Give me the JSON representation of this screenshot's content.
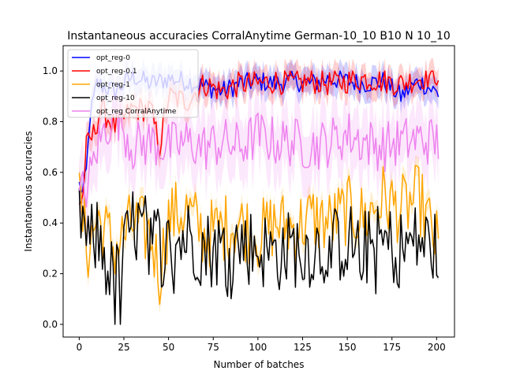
{
  "chart_data": {
    "type": "line",
    "title": "Instantaneous accuracies CorralAnytime German-10_10 B10 N 10_10",
    "xlabel": "Number of batches",
    "ylabel": "Instantaneous accuracies",
    "xlim": [
      -9,
      210
    ],
    "ylim": [
      -0.05,
      1.1
    ],
    "xticks": [
      0,
      25,
      50,
      75,
      100,
      125,
      150,
      175,
      200
    ],
    "yticks": [
      0.0,
      0.2,
      0.4,
      0.6,
      0.8,
      1.0
    ],
    "xtick_labels": [
      "0",
      "25",
      "50",
      "75",
      "100",
      "125",
      "150",
      "175",
      "200"
    ],
    "ytick_labels": [
      "0.0",
      "0.2",
      "0.4",
      "0.6",
      "0.8",
      "1.0"
    ],
    "grid": false,
    "legend_position": "top-left",
    "series": [
      {
        "name": "opt_reg-0",
        "color": "#0000ff",
        "band": 0.05,
        "anchors": [
          [
            0,
            0.55
          ],
          [
            2,
            0.52
          ],
          [
            4,
            0.6
          ],
          [
            6,
            0.82
          ],
          [
            10,
            0.95
          ],
          [
            20,
            0.92
          ],
          [
            30,
            0.98
          ],
          [
            40,
            0.95
          ],
          [
            50,
            0.97
          ],
          [
            60,
            0.96
          ],
          [
            70,
            0.94
          ],
          [
            80,
            0.92
          ],
          [
            90,
            0.95
          ],
          [
            100,
            0.96
          ],
          [
            110,
            0.95
          ],
          [
            120,
            0.96
          ],
          [
            130,
            0.95
          ],
          [
            140,
            0.97
          ],
          [
            150,
            0.96
          ],
          [
            160,
            0.95
          ],
          [
            170,
            0.96
          ],
          [
            180,
            0.9
          ],
          [
            190,
            0.96
          ],
          [
            201,
            0.91
          ]
        ],
        "noise": 0.04
      },
      {
        "name": "opt_reg-0.1",
        "color": "#ff0000",
        "band": 0.05,
        "anchors": [
          [
            0,
            0.48
          ],
          [
            2,
            0.5
          ],
          [
            4,
            0.7
          ],
          [
            8,
            0.75
          ],
          [
            12,
            0.85
          ],
          [
            20,
            0.78
          ],
          [
            30,
            0.85
          ],
          [
            40,
            0.85
          ],
          [
            45,
            0.7
          ],
          [
            50,
            0.9
          ],
          [
            60,
            0.88
          ],
          [
            70,
            0.95
          ],
          [
            80,
            0.92
          ],
          [
            90,
            0.95
          ],
          [
            100,
            0.95
          ],
          [
            110,
            0.96
          ],
          [
            120,
            0.95
          ],
          [
            130,
            0.96
          ],
          [
            140,
            0.95
          ],
          [
            150,
            0.96
          ],
          [
            160,
            0.97
          ],
          [
            170,
            0.96
          ],
          [
            180,
            0.95
          ],
          [
            190,
            0.97
          ],
          [
            201,
            0.99
          ]
        ],
        "noise": 0.05
      },
      {
        "name": "opt_reg-1",
        "color": "#ffa500",
        "band": 0.04,
        "anchors": [
          [
            0,
            0.48
          ],
          [
            5,
            0.3
          ],
          [
            10,
            0.42
          ],
          [
            20,
            0.3
          ],
          [
            30,
            0.4
          ],
          [
            40,
            0.35
          ],
          [
            45,
            0.2
          ],
          [
            50,
            0.42
          ],
          [
            60,
            0.45
          ],
          [
            70,
            0.35
          ],
          [
            80,
            0.38
          ],
          [
            90,
            0.4
          ],
          [
            100,
            0.35
          ],
          [
            110,
            0.4
          ],
          [
            120,
            0.38
          ],
          [
            130,
            0.42
          ],
          [
            140,
            0.4
          ],
          [
            150,
            0.45
          ],
          [
            160,
            0.42
          ],
          [
            170,
            0.5
          ],
          [
            180,
            0.45
          ],
          [
            190,
            0.5
          ],
          [
            201,
            0.3
          ]
        ],
        "noise": 0.14
      },
      {
        "name": "opt_reg-10",
        "color": "#000000",
        "band": 0.01,
        "anchors": [
          [
            0,
            0.47
          ],
          [
            5,
            0.3
          ],
          [
            10,
            0.35
          ],
          [
            20,
            0.15
          ],
          [
            30,
            0.4
          ],
          [
            40,
            0.35
          ],
          [
            50,
            0.3
          ],
          [
            60,
            0.35
          ],
          [
            70,
            0.3
          ],
          [
            80,
            0.3
          ],
          [
            90,
            0.32
          ],
          [
            100,
            0.3
          ],
          [
            110,
            0.28
          ],
          [
            120,
            0.3
          ],
          [
            130,
            0.3
          ],
          [
            140,
            0.3
          ],
          [
            150,
            0.33
          ],
          [
            160,
            0.3
          ],
          [
            170,
            0.32
          ],
          [
            180,
            0.3
          ],
          [
            190,
            0.33
          ],
          [
            201,
            0.3
          ]
        ],
        "noise": 0.16
      },
      {
        "name": "opt_reg CorralAnytime",
        "color": "#ee82ee",
        "band": 0.12,
        "anchors": [
          [
            0,
            0.5
          ],
          [
            5,
            0.55
          ],
          [
            10,
            0.7
          ],
          [
            20,
            0.85
          ],
          [
            30,
            0.7
          ],
          [
            40,
            0.72
          ],
          [
            50,
            0.7
          ],
          [
            60,
            0.72
          ],
          [
            70,
            0.7
          ],
          [
            80,
            0.72
          ],
          [
            90,
            0.7
          ],
          [
            100,
            0.75
          ],
          [
            110,
            0.72
          ],
          [
            120,
            0.72
          ],
          [
            130,
            0.7
          ],
          [
            140,
            0.72
          ],
          [
            150,
            0.75
          ],
          [
            160,
            0.72
          ],
          [
            170,
            0.7
          ],
          [
            180,
            0.72
          ],
          [
            190,
            0.73
          ],
          [
            201,
            0.72
          ]
        ],
        "noise": 0.1
      }
    ]
  }
}
